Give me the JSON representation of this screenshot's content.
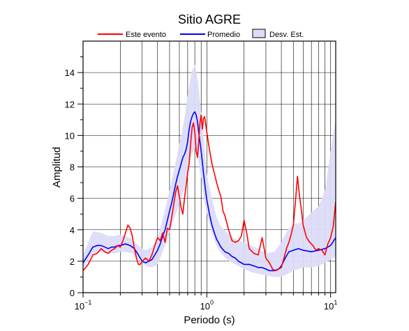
{
  "chart_data": {
    "type": "line",
    "title": "Sitio AGRE",
    "xlabel": "Periodo (s)",
    "ylabel": "Amplitud",
    "xscale": "log",
    "xlim": [
      0.1,
      11
    ],
    "ylim": [
      0,
      16
    ],
    "grid": true,
    "legend_position": "top",
    "x_ticks": [
      {
        "base": "10",
        "exp": "−1",
        "value": 0.1
      },
      {
        "base": "10",
        "exp": "0",
        "value": 1
      },
      {
        "base": "10",
        "exp": "1",
        "value": 10
      }
    ],
    "y_ticks": [
      0,
      2,
      4,
      6,
      8,
      10,
      12,
      14
    ],
    "legend": {
      "items": [
        {
          "label": "Este evento",
          "kind": "line",
          "color": "#ff0000"
        },
        {
          "label": "Promedio",
          "kind": "line",
          "color": "#0000ff"
        },
        {
          "label": "Desv. Est.",
          "kind": "patch",
          "color": "#dcdcf8"
        }
      ]
    },
    "band": {
      "name": "Desv. Est.",
      "color": "#dcdcf8",
      "x": [
        0.1,
        0.12,
        0.14,
        0.16,
        0.18,
        0.2,
        0.22,
        0.25,
        0.28,
        0.32,
        0.36,
        0.4,
        0.45,
        0.5,
        0.55,
        0.6,
        0.65,
        0.7,
        0.75,
        0.8,
        0.85,
        0.9,
        0.95,
        1.0,
        1.1,
        1.2,
        1.3,
        1.5,
        1.7,
        2.0,
        2.3,
        2.6,
        3.0,
        3.5,
        4.0,
        4.5,
        5.0,
        5.5,
        6.0,
        7.0,
        8.0,
        9.0,
        10.0,
        11.0
      ],
      "lower": [
        1.6,
        2.5,
        2.6,
        2.5,
        2.5,
        2.6,
        2.6,
        2.5,
        2.1,
        1.7,
        1.6,
        1.8,
        2.8,
        3.8,
        4.8,
        5.7,
        6.5,
        7.7,
        8.8,
        9.2,
        8.5,
        7.3,
        6.0,
        5.0,
        3.8,
        3.0,
        2.5,
        2.0,
        1.8,
        1.5,
        1.3,
        1.2,
        1.1,
        1.0,
        1.0,
        1.2,
        1.4,
        1.5,
        1.6,
        1.6,
        1.7,
        1.9,
        2.1,
        2.3
      ],
      "upper": [
        2.4,
        3.9,
        3.8,
        3.6,
        3.6,
        3.7,
        3.6,
        3.4,
        3.0,
        2.7,
        2.9,
        3.4,
        5.0,
        6.5,
        8.0,
        9.5,
        10.8,
        12.5,
        14.0,
        14.5,
        13.4,
        11.5,
        9.6,
        7.5,
        6.0,
        4.8,
        4.2,
        3.7,
        3.4,
        3.2,
        3.0,
        2.8,
        2.5,
        2.6,
        3.2,
        4.0,
        4.4,
        4.4,
        4.6,
        5.1,
        5.5,
        6.5,
        9.0,
        11.0
      ]
    },
    "series": [
      {
        "name": "Este evento",
        "color": "#ff0000",
        "x": [
          0.1,
          0.11,
          0.12,
          0.13,
          0.14,
          0.15,
          0.16,
          0.17,
          0.18,
          0.19,
          0.2,
          0.21,
          0.22,
          0.23,
          0.24,
          0.25,
          0.26,
          0.27,
          0.28,
          0.29,
          0.3,
          0.32,
          0.34,
          0.36,
          0.38,
          0.4,
          0.42,
          0.44,
          0.46,
          0.48,
          0.5,
          0.52,
          0.54,
          0.56,
          0.58,
          0.6,
          0.62,
          0.64,
          0.66,
          0.68,
          0.7,
          0.72,
          0.74,
          0.76,
          0.78,
          0.8,
          0.82,
          0.84,
          0.86,
          0.88,
          0.9,
          0.92,
          0.94,
          0.96,
          0.98,
          1.0,
          1.05,
          1.1,
          1.15,
          1.2,
          1.25,
          1.3,
          1.35,
          1.4,
          1.5,
          1.6,
          1.7,
          1.8,
          1.9,
          2.0,
          2.1,
          2.2,
          2.4,
          2.6,
          2.8,
          3.0,
          3.2,
          3.4,
          3.6,
          3.8,
          4.0,
          4.2,
          4.4,
          4.6,
          4.8,
          5.0,
          5.2,
          5.4,
          5.6,
          5.8,
          6.0,
          6.4,
          6.8,
          7.2,
          7.6,
          8.0,
          8.5,
          9.0,
          9.5,
          10.0,
          10.5,
          11.0
        ],
        "y": [
          1.4,
          1.8,
          2.4,
          2.5,
          2.8,
          2.6,
          2.5,
          2.7,
          2.8,
          3.0,
          2.9,
          3.3,
          3.8,
          4.3,
          4.1,
          3.6,
          2.8,
          2.2,
          1.8,
          1.8,
          2.0,
          2.2,
          2.0,
          2.4,
          3.0,
          3.5,
          3.3,
          3.8,
          3.2,
          4.1,
          4.0,
          4.8,
          5.6,
          6.4,
          6.8,
          6.1,
          5.4,
          5.0,
          6.0,
          6.8,
          7.6,
          8.2,
          9.5,
          10.5,
          10.8,
          10.2,
          9.0,
          8.6,
          9.6,
          10.8,
          11.3,
          10.4,
          11.1,
          11.2,
          10.7,
          10.2,
          9.1,
          8.2,
          7.6,
          7.0,
          6.5,
          6.1,
          5.2,
          4.9,
          4.0,
          3.3,
          3.2,
          3.3,
          3.6,
          4.6,
          3.8,
          2.8,
          2.5,
          2.4,
          3.5,
          2.2,
          1.9,
          1.5,
          1.4,
          1.5,
          1.6,
          2.2,
          2.8,
          3.2,
          3.7,
          4.3,
          5.8,
          7.4,
          6.2,
          5.3,
          4.3,
          3.5,
          3.2,
          3.0,
          2.7,
          2.8,
          2.7,
          2.4,
          3.1,
          3.5,
          4.2,
          5.8
        ]
      },
      {
        "name": "Promedio",
        "color": "#0000ff",
        "x": [
          0.1,
          0.11,
          0.12,
          0.13,
          0.14,
          0.15,
          0.16,
          0.17,
          0.18,
          0.19,
          0.2,
          0.22,
          0.24,
          0.26,
          0.28,
          0.3,
          0.32,
          0.34,
          0.36,
          0.38,
          0.4,
          0.42,
          0.44,
          0.46,
          0.48,
          0.5,
          0.52,
          0.54,
          0.56,
          0.58,
          0.6,
          0.62,
          0.64,
          0.66,
          0.68,
          0.7,
          0.72,
          0.74,
          0.76,
          0.78,
          0.8,
          0.82,
          0.84,
          0.86,
          0.88,
          0.9,
          0.92,
          0.94,
          0.96,
          0.98,
          1.0,
          1.05,
          1.1,
          1.15,
          1.2,
          1.3,
          1.4,
          1.5,
          1.6,
          1.7,
          1.8,
          1.9,
          2.0,
          2.2,
          2.4,
          2.6,
          2.8,
          3.0,
          3.2,
          3.5,
          3.8,
          4.0,
          4.3,
          4.6,
          5.0,
          5.5,
          6.0,
          7.0,
          8.0,
          9.0,
          10.0,
          11.0
        ],
        "y": [
          1.9,
          2.4,
          2.9,
          3.0,
          3.0,
          2.9,
          2.8,
          2.9,
          2.9,
          3.0,
          3.0,
          3.1,
          3.0,
          2.8,
          2.4,
          2.0,
          1.9,
          2.0,
          2.1,
          2.4,
          2.7,
          3.1,
          3.6,
          4.0,
          4.6,
          5.2,
          5.7,
          6.3,
          6.9,
          7.4,
          7.8,
          8.2,
          8.6,
          8.8,
          9.1,
          9.6,
          10.4,
          10.9,
          11.2,
          11.4,
          11.5,
          11.3,
          10.9,
          10.2,
          9.6,
          9.0,
          8.3,
          7.6,
          7.0,
          6.4,
          5.9,
          5.0,
          4.3,
          3.8,
          3.4,
          2.9,
          2.6,
          2.5,
          2.3,
          2.2,
          2.0,
          1.9,
          1.8,
          1.8,
          1.7,
          1.6,
          1.6,
          1.5,
          1.4,
          1.4,
          1.5,
          1.7,
          2.2,
          2.6,
          2.7,
          2.8,
          2.7,
          2.6,
          2.7,
          2.8,
          3.0,
          3.5
        ]
      }
    ]
  }
}
